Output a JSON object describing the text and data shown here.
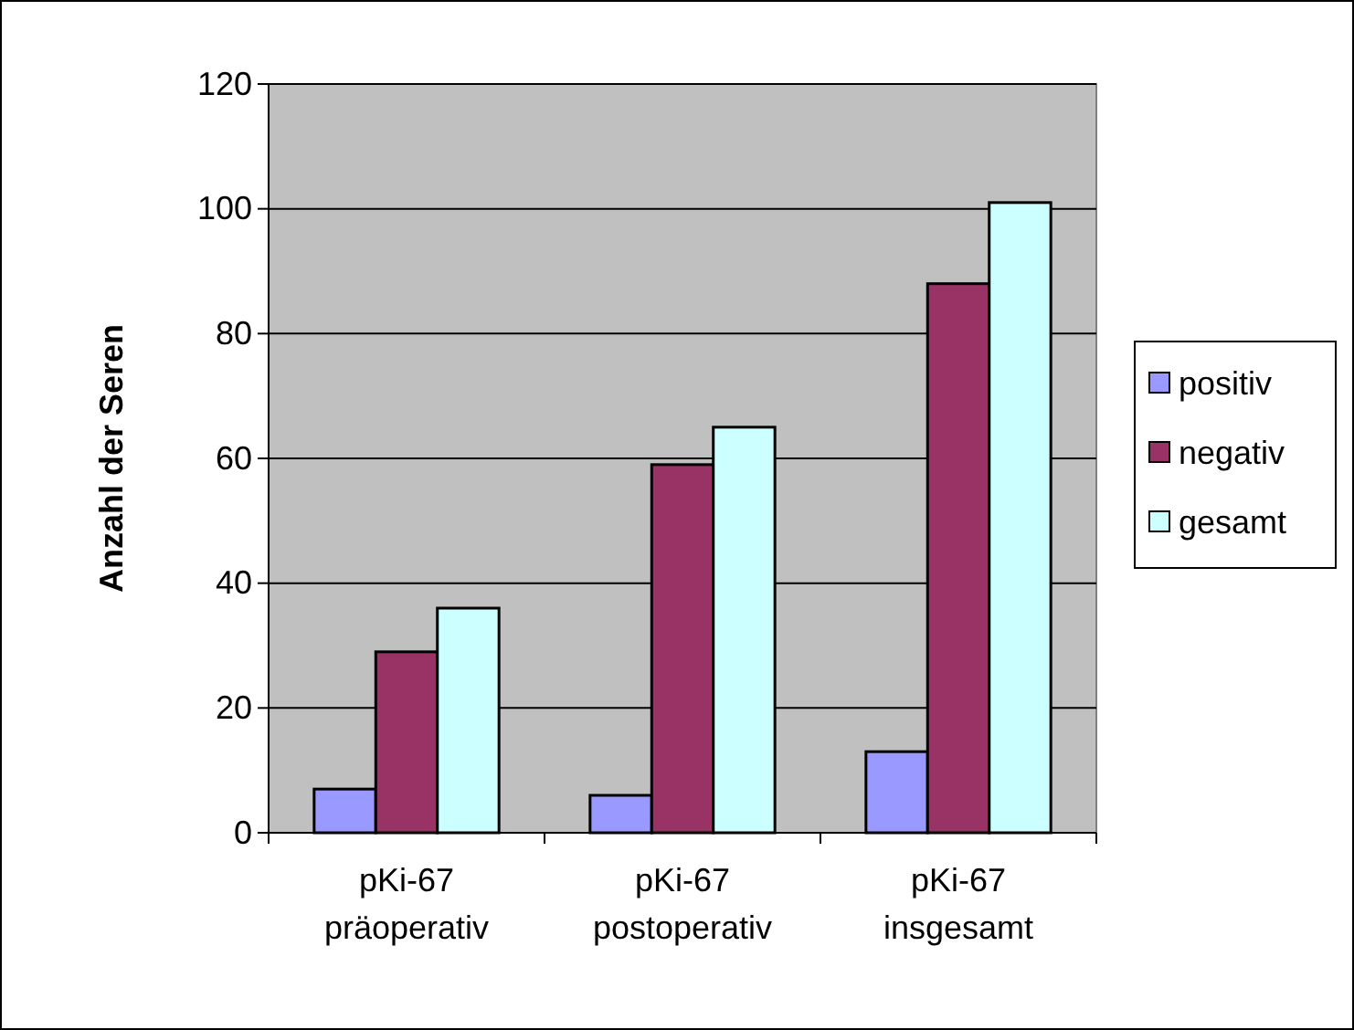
{
  "chart_data": {
    "type": "bar",
    "ylabel": "Anzahl der Seren",
    "categories": [
      "pKi-67\npräoperativ",
      "pKi-67\npostoperativ",
      "pKi-67\ninsgesamt"
    ],
    "series": [
      {
        "name": "positiv",
        "color": "#9999ff",
        "values": [
          7,
          6,
          13
        ]
      },
      {
        "name": "negativ",
        "color": "#993366",
        "values": [
          29,
          59,
          88
        ]
      },
      {
        "name": "gesamt",
        "color": "#ccffff",
        "values": [
          36,
          65,
          101
        ]
      }
    ],
    "ylim": [
      0,
      120
    ],
    "yticks": [
      0,
      20,
      40,
      60,
      80,
      100,
      120
    ],
    "grid": "y",
    "legend": "right"
  }
}
